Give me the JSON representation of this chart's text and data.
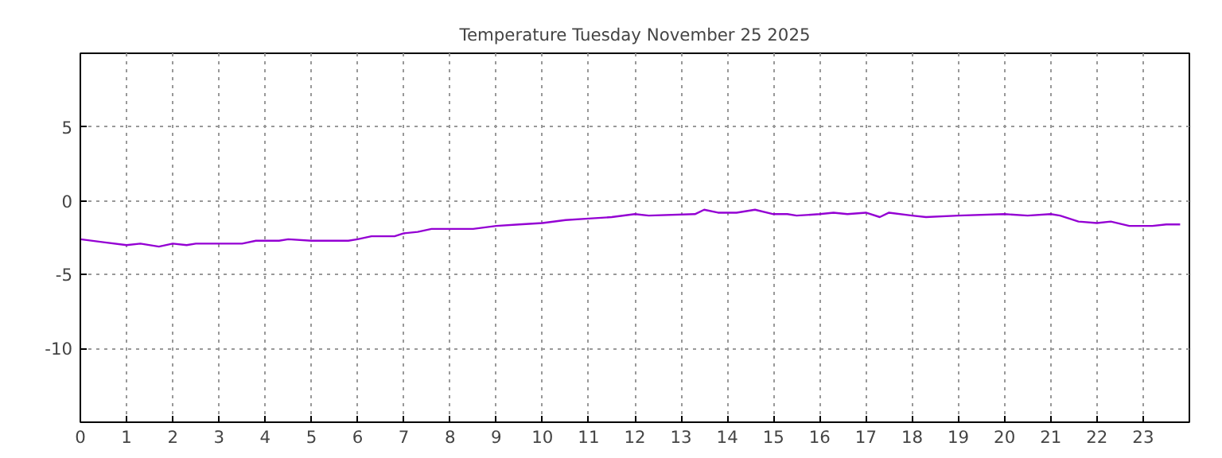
{
  "chart_data": {
    "type": "line",
    "title": "Temperature Tuesday November 25 2025",
    "x": [
      0,
      0.5,
      1,
      1.3,
      1.7,
      2,
      2.3,
      2.5,
      3,
      3.5,
      3.8,
      4.3,
      4.5,
      5,
      5.8,
      6,
      6.3,
      6.8,
      7,
      7.3,
      7.6,
      8.5,
      9,
      9.5,
      10,
      10.5,
      11,
      11.5,
      12,
      12.3,
      13.3,
      13.5,
      13.8,
      14.2,
      14.6,
      15,
      15.3,
      15.5,
      16,
      16.3,
      16.6,
      17,
      17.3,
      17.5,
      18,
      18.3,
      19,
      20,
      20.5,
      21,
      21.2,
      21.6,
      22,
      22.3,
      22.7,
      23.2,
      23.5,
      23.8
    ],
    "series": [
      {
        "color": "#9400d3",
        "values": [
          -2.6,
          -2.8,
          -3.0,
          -2.9,
          -3.1,
          -2.9,
          -3.0,
          -2.9,
          -2.9,
          -2.9,
          -2.7,
          -2.7,
          -2.6,
          -2.7,
          -2.7,
          -2.6,
          -2.4,
          -2.4,
          -2.2,
          -2.1,
          -1.9,
          -1.9,
          -1.7,
          -1.6,
          -1.5,
          -1.3,
          -1.2,
          -1.1,
          -0.9,
          -1.0,
          -0.9,
          -0.6,
          -0.8,
          -0.8,
          -0.6,
          -0.9,
          -0.9,
          -1.0,
          -0.9,
          -0.8,
          -0.9,
          -0.8,
          -1.1,
          -0.8,
          -1.0,
          -1.1,
          -1.0,
          -0.9,
          -1.0,
          -0.9,
          -1.0,
          -1.4,
          -1.5,
          -1.4,
          -1.7,
          -1.7,
          -1.6,
          -1.6
        ]
      }
    ],
    "xlim": [
      0,
      24
    ],
    "ylim": [
      -15,
      10
    ],
    "xticks": [
      0,
      1,
      2,
      3,
      4,
      5,
      6,
      7,
      8,
      9,
      10,
      11,
      12,
      13,
      14,
      15,
      16,
      17,
      18,
      19,
      20,
      21,
      22,
      23
    ],
    "yticks": [
      5,
      0,
      -5,
      -10
    ],
    "grid": true,
    "line_style": "solid"
  }
}
